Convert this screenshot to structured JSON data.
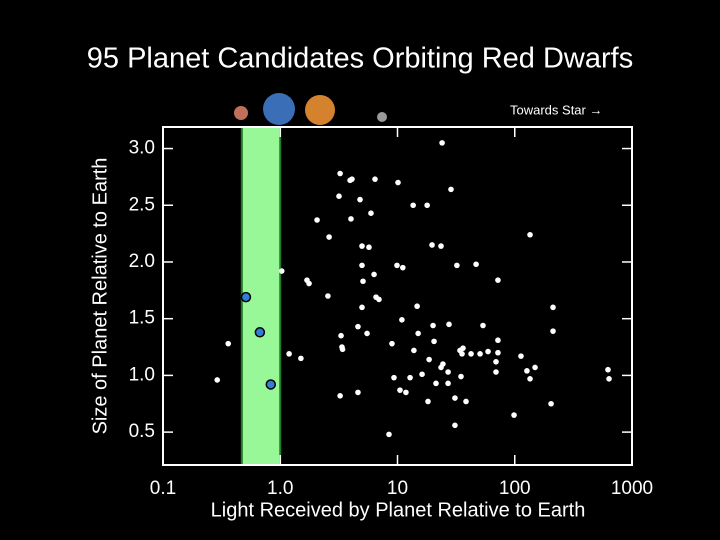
{
  "chart_data": {
    "type": "scatter",
    "title": "95 Planet Candidates Orbiting Red Dwarfs",
    "annotation": "Towards Star →",
    "x_label": "Light Received by Planet Relative to Earth",
    "y_label": "Size of Planet Relative to Earth",
    "xscale": "log",
    "xlim": [
      0.1,
      1000
    ],
    "ylim": [
      0.21,
      3.19
    ],
    "xticks": [
      0.1,
      {
        "value": 1,
        "label": "1.0"
      },
      10,
      100,
      1000
    ],
    "yticks": [
      0.5,
      {
        "value": 1,
        "label": "1.0"
      },
      1.5,
      {
        "value": 2,
        "label": "2.0"
      },
      2.5,
      {
        "value": 3,
        "label": "3.0"
      }
    ],
    "habitable_zone": {
      "range": [
        0.47,
        1.0
      ],
      "color": "#98f898",
      "edge_color": "#1f7a2a"
    },
    "series": [
      {
        "color": "#ffffff",
        "x": [
          0.29,
          0.36,
          1.03,
          1.19,
          1.5,
          1.69,
          1.76,
          2.55,
          2.61,
          2.06,
          3.24,
          3.17,
          3.3,
          3.36,
          3.4,
          3.24,
          3.94,
          4.01,
          4.09,
          4.6,
          4.6,
          4.79,
          4.98,
          4.98,
          4.98,
          5.08,
          5.5,
          5.71,
          5.94,
          6.43,
          6.31,
          6.56,
          6.95,
          8.46,
          8.97,
          9.33,
          9.9,
          10.1,
          10.5,
          11.1,
          10.9,
          11.8,
          12.8,
          13.6,
          13.8,
          14.7,
          15,
          16.2,
          17.9,
          18.2,
          18.6,
          19.7,
          20.1,
          20.5,
          21.3,
          23.5,
          23.5,
          24,
          24.4,
          27,
          27,
          27.5,
          28.6,
          30.9,
          30.9,
          32.1,
          34.1,
          34.8,
          35.5,
          36.2,
          38.4,
          42.4,
          46.8,
          50.6,
          53.6,
          59.2,
          69.2,
          69.2,
          71.9,
          71.9,
          71.9,
          98.6,
          113,
          127,
          135,
          135,
          149,
          204,
          212,
          212,
          624,
          637
        ],
        "values": [
          0.96,
          1.28,
          1.92,
          1.19,
          1.15,
          1.84,
          1.81,
          1.7,
          2.22,
          2.37,
          2.78,
          2.58,
          1.35,
          1.25,
          1.23,
          0.82,
          2.72,
          2.38,
          2.73,
          0.85,
          1.43,
          2.55,
          2.14,
          1.97,
          1.6,
          1.83,
          1.37,
          2.13,
          2.43,
          2.73,
          1.89,
          1.69,
          1.67,
          0.48,
          1.28,
          0.98,
          1.97,
          2.7,
          0.87,
          1.95,
          1.49,
          0.85,
          0.98,
          2.5,
          1.22,
          1.61,
          1.37,
          1.01,
          2.5,
          0.77,
          1.14,
          2.15,
          1.44,
          1.3,
          0.93,
          2.14,
          1.07,
          3.05,
          1.1,
          1.03,
          0.93,
          1.45,
          2.64,
          0.8,
          0.56,
          1.97,
          1.22,
          0.99,
          1.19,
          1.24,
          0.77,
          1.19,
          1.98,
          1.19,
          1.44,
          1.21,
          1.03,
          1.12,
          1.2,
          1.84,
          1.31,
          0.65,
          1.17,
          1.04,
          0.97,
          2.24,
          1.07,
          0.75,
          1.39,
          1.6,
          1.05,
          0.97
        ]
      },
      {
        "color": "#2f7fd6",
        "x": [
          0.51,
          0.67,
          0.83
        ],
        "values": [
          1.69,
          1.38,
          0.92
        ]
      }
    ]
  }
}
